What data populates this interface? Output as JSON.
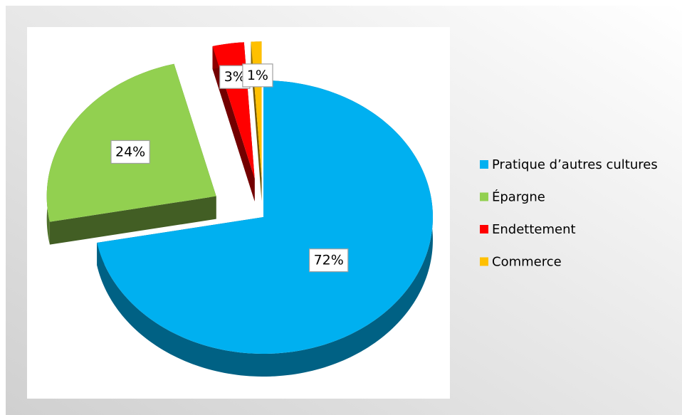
{
  "chart_data": {
    "type": "pie3d",
    "categories": [
      "Pratique d’autres cultures",
      "Épargne",
      "Endettement",
      "Commerce"
    ],
    "values": [
      72,
      24,
      3,
      1
    ],
    "value_labels": [
      "72%",
      "24%",
      "3%",
      "1%"
    ],
    "colors": [
      "#00b0f0",
      "#92d050",
      "#ff0000",
      "#ffc000"
    ],
    "legend": "right"
  }
}
